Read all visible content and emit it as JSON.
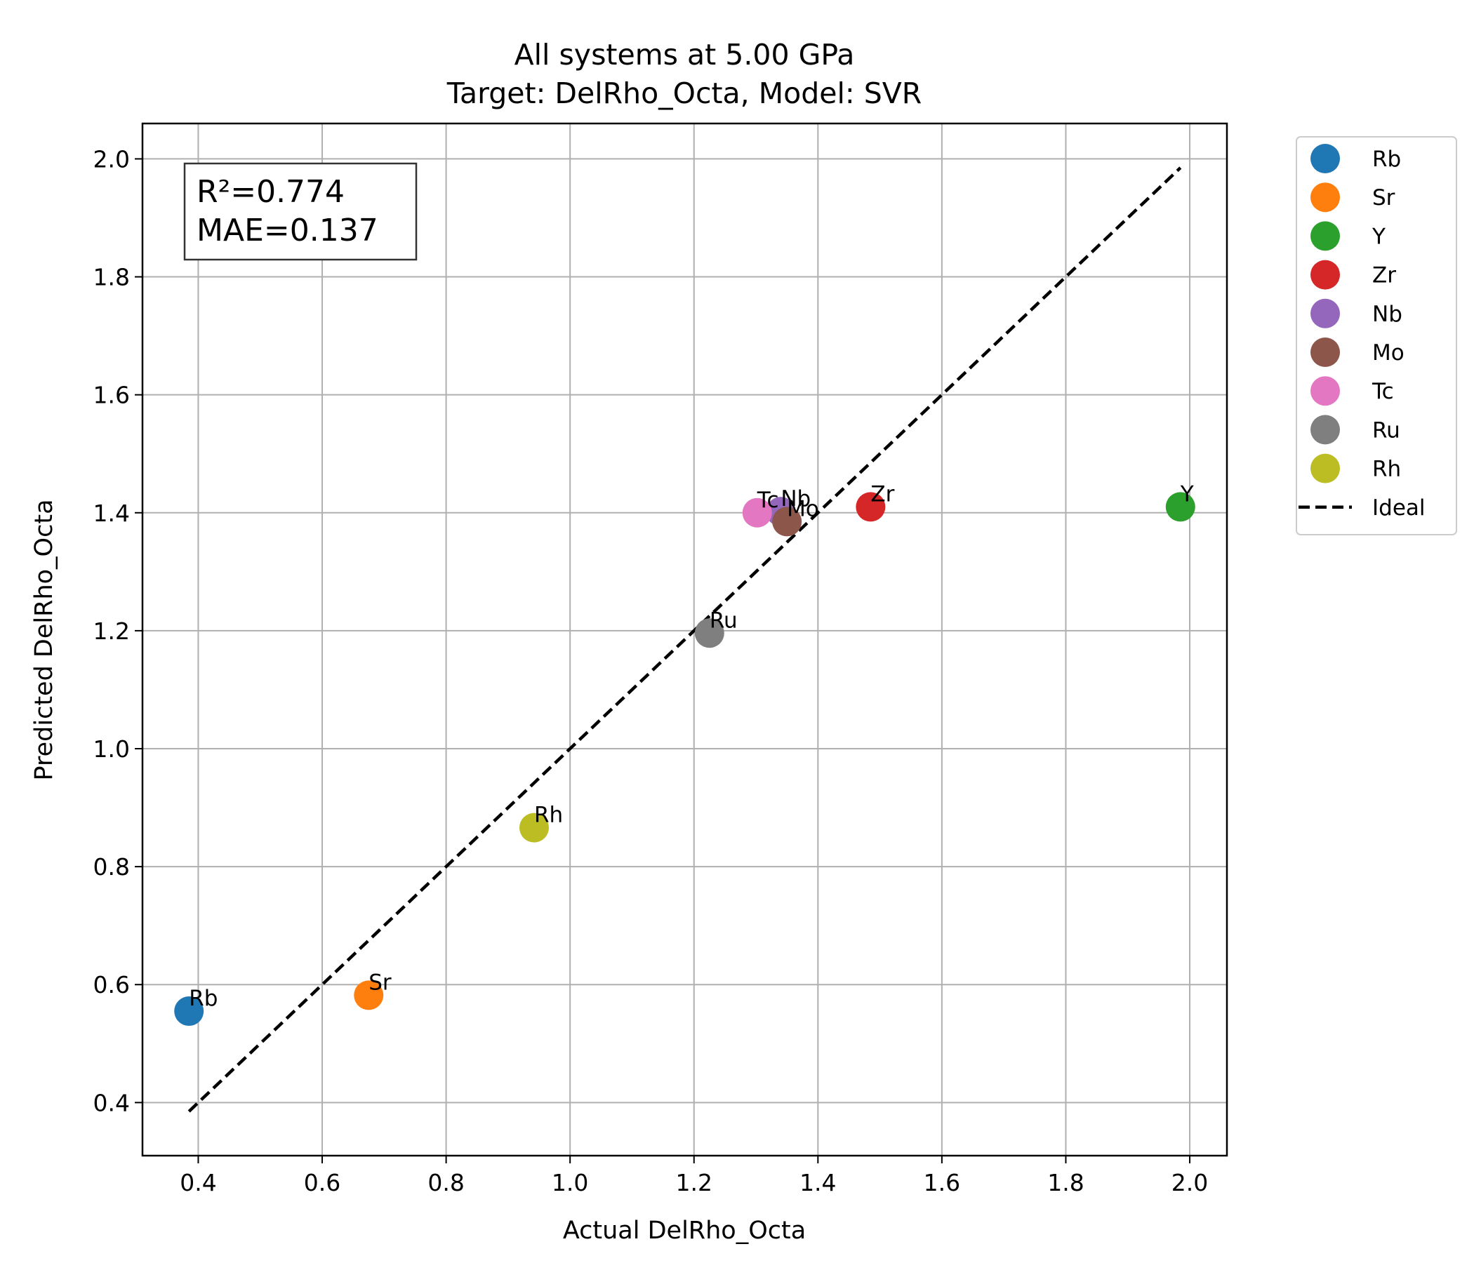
{
  "chart_data": {
    "type": "scatter",
    "title": [
      "All systems at 5.00 GPa",
      "Target: DelRho_Octa, Model: SVR"
    ],
    "xlabel": "Actual DelRho_Octa",
    "ylabel": "Predicted DelRho_Octa",
    "xlim": [
      0.31,
      2.06
    ],
    "ylim": [
      0.31,
      2.06
    ],
    "xticks": [
      "0.4",
      "0.6",
      "0.8",
      "1.0",
      "1.2",
      "1.4",
      "1.6",
      "1.8",
      "2.0"
    ],
    "yticks": [
      "0.4",
      "0.6",
      "0.8",
      "1.0",
      "1.2",
      "1.4",
      "1.6",
      "1.8",
      "2.0"
    ],
    "grid": true,
    "legend_position": "outside-right",
    "stats": [
      "R²=0.774",
      "MAE=0.137"
    ],
    "series": [
      {
        "name": "Rb",
        "x": 0.385,
        "y": 0.555,
        "color": "#1f77b4"
      },
      {
        "name": "Sr",
        "x": 0.675,
        "y": 0.582,
        "color": "#ff7f0e"
      },
      {
        "name": "Y",
        "x": 1.985,
        "y": 1.41,
        "color": "#2ca02c"
      },
      {
        "name": "Zr",
        "x": 1.485,
        "y": 1.41,
        "color": "#d62728"
      },
      {
        "name": "Nb",
        "x": 1.34,
        "y": 1.402,
        "color": "#9467bd"
      },
      {
        "name": "Mo",
        "x": 1.35,
        "y": 1.385,
        "color": "#8c564b"
      },
      {
        "name": "Tc",
        "x": 1.302,
        "y": 1.4,
        "color": "#e377c2"
      },
      {
        "name": "Ru",
        "x": 1.225,
        "y": 1.196,
        "color": "#7f7f7f"
      },
      {
        "name": "Rh",
        "x": 0.942,
        "y": 0.866,
        "color": "#bcbd22"
      }
    ],
    "ideal_line": {
      "name": "Ideal",
      "x": [
        0.385,
        1.985
      ],
      "y": [
        0.385,
        1.985
      ],
      "style": "dashed",
      "color": "#000000"
    }
  }
}
